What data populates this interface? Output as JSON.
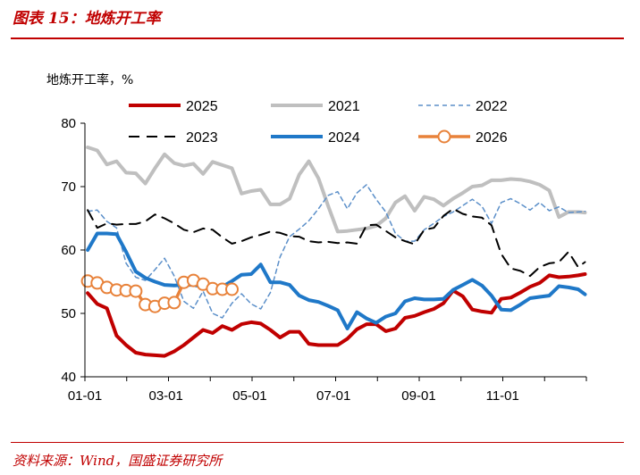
{
  "figure_title": "图表 15：地炼开工率",
  "source_note": "资料来源：Wind，国盛证券研究所",
  "chart_data": {
    "type": "line",
    "title": "地炼开工率",
    "xlabel": "",
    "ylabel": "地炼开工率，%",
    "ylim": [
      40,
      80
    ],
    "yticks": [
      40,
      50,
      60,
      70,
      80
    ],
    "xlim": [
      1,
      366
    ],
    "xticks": [
      {
        "label": "01-01",
        "day": 1
      },
      {
        "label": "03-01",
        "day": 60
      },
      {
        "label": "05-01",
        "day": 121
      },
      {
        "label": "07-01",
        "day": 182
      },
      {
        "label": "09-01",
        "day": 244
      },
      {
        "label": "11-01",
        "day": 305
      }
    ],
    "grid": false,
    "legend_position": "top",
    "series": [
      {
        "name": "2025",
        "color": "#c00000",
        "style": "solid-thick",
        "x": [
          3,
          10,
          17,
          24,
          31,
          38,
          45,
          52,
          59,
          66,
          73,
          80,
          87,
          94,
          101,
          108,
          115,
          122,
          129,
          136,
          143,
          150,
          157,
          164,
          171,
          178,
          185,
          192,
          199,
          206,
          213,
          220,
          227,
          234,
          241,
          248,
          255,
          262,
          269,
          276,
          283,
          290,
          297,
          304,
          311,
          318,
          325,
          332,
          339,
          346,
          353,
          360,
          365
        ],
        "y": [
          53.2,
          51.5,
          50.8,
          46.5,
          45,
          43.8,
          43.5,
          43.4,
          43.3,
          44,
          45,
          46.2,
          47.4,
          46.9,
          48,
          47.4,
          48.3,
          48.6,
          48.4,
          47.4,
          46.2,
          47.1,
          47.1,
          45.2,
          45,
          45,
          45,
          46,
          47.5,
          48.3,
          48.3,
          47.2,
          47.6,
          49.3,
          49.6,
          50.2,
          50.7,
          51.6,
          53.6,
          52.7,
          50.6,
          50.3,
          50.1,
          52.3,
          52.5,
          53.3,
          54.2,
          54.8,
          56,
          55.7,
          55.8,
          56,
          56.2
        ]
      },
      {
        "name": "2021",
        "color": "#bfbfbf",
        "style": "solid-thick",
        "x": [
          3,
          10,
          17,
          24,
          31,
          38,
          45,
          52,
          59,
          66,
          73,
          80,
          87,
          94,
          101,
          108,
          115,
          122,
          129,
          136,
          143,
          150,
          157,
          164,
          171,
          178,
          185,
          192,
          199,
          206,
          213,
          220,
          227,
          234,
          241,
          248,
          255,
          262,
          269,
          276,
          283,
          290,
          297,
          304,
          311,
          318,
          325,
          332,
          339,
          346,
          353,
          360,
          365
        ],
        "y": [
          76.2,
          75.7,
          73.5,
          74,
          72.2,
          72.1,
          70.5,
          72.9,
          75.1,
          73.7,
          73.3,
          73.6,
          72,
          73.9,
          73.4,
          72.9,
          68.9,
          69.3,
          69.5,
          67.2,
          67.2,
          68.1,
          71.9,
          74,
          71.3,
          67,
          62.9,
          63,
          63.2,
          63.4,
          63.8,
          65,
          67.5,
          68.5,
          66.2,
          68.4,
          68,
          67,
          68.1,
          69,
          70,
          70.2,
          71,
          71,
          71.2,
          71.1,
          70.8,
          70.3,
          69.4,
          65.2,
          66,
          66,
          65.9
        ]
      },
      {
        "name": "2022",
        "color": "#5b8fc9",
        "style": "dashed-thin",
        "x": [
          3,
          10,
          17,
          24,
          31,
          38,
          45,
          52,
          59,
          66,
          73,
          80,
          87,
          94,
          101,
          108,
          115,
          122,
          129,
          136,
          143,
          150,
          157,
          164,
          171,
          178,
          185,
          192,
          199,
          206,
          213,
          220,
          227,
          234,
          241,
          248,
          255,
          262,
          269,
          276,
          283,
          290,
          297,
          304,
          311,
          318,
          325,
          332,
          339,
          346,
          353,
          360,
          365
        ],
        "y": [
          66.1,
          66.3,
          64.5,
          63.5,
          57.9,
          55.7,
          55.2,
          56.9,
          58.7,
          55.9,
          51.9,
          50.8,
          53.5,
          50,
          49.3,
          51.6,
          53.1,
          51.5,
          50.7,
          53.3,
          58.9,
          62.1,
          63.3,
          64.6,
          66.5,
          68.6,
          69.2,
          66.5,
          69,
          70.3,
          68,
          66,
          62.6,
          61.4,
          61.4,
          63.2,
          64.2,
          65.3,
          66,
          67,
          68,
          66.9,
          64.2,
          67.5,
          68.1,
          67.3,
          66.3,
          67.5,
          66.2,
          66.8,
          65.9,
          66,
          66.1
        ]
      },
      {
        "name": "2023",
        "color": "#000000",
        "style": "dashed",
        "x": [
          3,
          10,
          17,
          24,
          31,
          38,
          45,
          52,
          59,
          66,
          73,
          80,
          87,
          94,
          101,
          108,
          115,
          122,
          129,
          136,
          143,
          150,
          157,
          164,
          171,
          178,
          185,
          192,
          199,
          206,
          213,
          220,
          227,
          234,
          241,
          248,
          255,
          262,
          269,
          276,
          283,
          290,
          297,
          304,
          311,
          318,
          325,
          332,
          339,
          346,
          353,
          360,
          365
        ],
        "y": [
          66.3,
          63.5,
          64.2,
          64,
          64.1,
          64.1,
          64.5,
          65.6,
          65,
          64.2,
          63.2,
          62.8,
          63.4,
          63.2,
          62,
          61,
          61.4,
          62,
          62.4,
          62.9,
          62.7,
          62.2,
          62.1,
          61.4,
          61.2,
          61.3,
          61.1,
          61.2,
          61,
          63.9,
          64,
          63,
          62,
          61.4,
          60.9,
          63.2,
          63.5,
          65.4,
          66.5,
          65.7,
          65.3,
          65.1,
          63.9,
          59.4,
          57.1,
          56.7,
          55.9,
          57.3,
          57.9,
          58.1,
          59.7,
          57.3,
          58.1
        ]
      },
      {
        "name": "2024",
        "color": "#1f78c8",
        "style": "solid-thick",
        "x": [
          3,
          10,
          17,
          24,
          31,
          38,
          45,
          52,
          59,
          66,
          73,
          80,
          87,
          94,
          101,
          108,
          115,
          122,
          129,
          136,
          143,
          150,
          157,
          164,
          171,
          178,
          185,
          192,
          199,
          206,
          213,
          220,
          227,
          234,
          241,
          248,
          255,
          262,
          269,
          276,
          283,
          290,
          297,
          304,
          311,
          318,
          325,
          332,
          339,
          346,
          353,
          360,
          365
        ],
        "y": [
          60,
          62.6,
          62.6,
          62.5,
          59.7,
          56.6,
          55.6,
          55,
          54.5,
          54.4,
          54.5,
          54.5,
          54.2,
          54,
          54.2,
          55.1,
          56.1,
          56.2,
          57.7,
          54.9,
          54.9,
          54.5,
          52.8,
          52.1,
          51.8,
          51.2,
          50.5,
          47.6,
          50.2,
          49.2,
          48.5,
          49.5,
          50,
          51.9,
          52.4,
          52.2,
          52.2,
          52.3,
          53.7,
          54.5,
          55.3,
          54.4,
          52.8,
          50.6,
          50.5,
          51.4,
          52.4,
          52.6,
          52.8,
          54.3,
          54.1,
          53.8,
          53
        ]
      },
      {
        "name": "2026",
        "color": "#e8823a",
        "style": "solid-marker",
        "x": [
          3,
          10,
          17,
          24,
          31,
          38,
          45,
          52,
          59,
          66,
          73,
          80,
          87,
          94,
          101,
          108
        ],
        "y": [
          55.1,
          54.8,
          54.1,
          53.7,
          53.6,
          53.5,
          51.4,
          51.1,
          51.6,
          51.7,
          54.9,
          55.2,
          54.6,
          53.9,
          53.8,
          53.8
        ]
      }
    ]
  }
}
